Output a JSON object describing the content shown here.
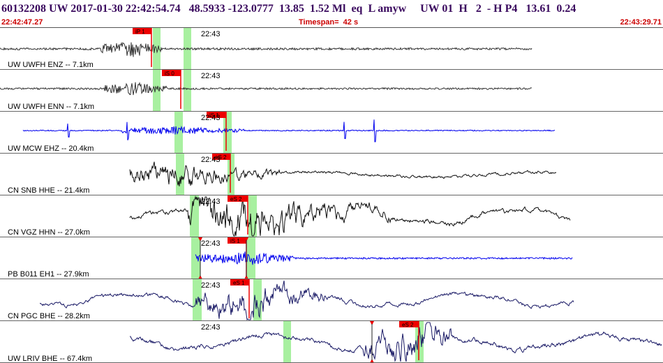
{
  "header": {
    "title": "60132208 UW 2017-01-30 22:42:54.74   48.5933 -123.0777  13.85  1.52 Ml  eq  L amyw     UW 01  H   2  - H P4   13.61  0.24",
    "start_time": "22:42:47.27",
    "timespan": "Timespan=  42 s",
    "end_time": "22:43:29.71"
  },
  "colors": {
    "blue": "#0000ee",
    "black": "#111111",
    "gray": "#333333",
    "navy": "#1a1a66",
    "pick": "#ee0000",
    "window": "#a8f0a0"
  },
  "panels": [
    {
      "label": "UW UWFH ENZ -- 7.1km",
      "tick": "22:43",
      "pick": "iP 1",
      "color": "#333333"
    },
    {
      "label": "UW UWFH ENN -- 7.1km",
      "tick": "22:43",
      "pick": "iS 0",
      "color": "#333333"
    },
    {
      "label": "UW MCW EHZ -- 20.4km",
      "tick": "22:43",
      "pick": "iS 1",
      "color": "#0000ee"
    },
    {
      "label": "CN SNB HHE -- 21.4km",
      "tick": "22:43",
      "pick": "eS 2",
      "color": "#111111"
    },
    {
      "label": "CN VGZ HHN -- 27.0km",
      "tick": "22:43",
      "pick": "eS 2",
      "color": "#111111"
    },
    {
      "label": "PB B011 EH1 -- 27.9km",
      "tick": "22:43",
      "pick": "iS 1",
      "color": "#0000ee"
    },
    {
      "label": "CN PGC BHE -- 28.2km",
      "tick": "22:43",
      "pick": "eS 1",
      "color": "#1a1a66"
    },
    {
      "label": "UW LRIV BHE -- 67.4km",
      "tick": "22:43",
      "pick": "eS 2",
      "color": "#1a1a66"
    }
  ]
}
